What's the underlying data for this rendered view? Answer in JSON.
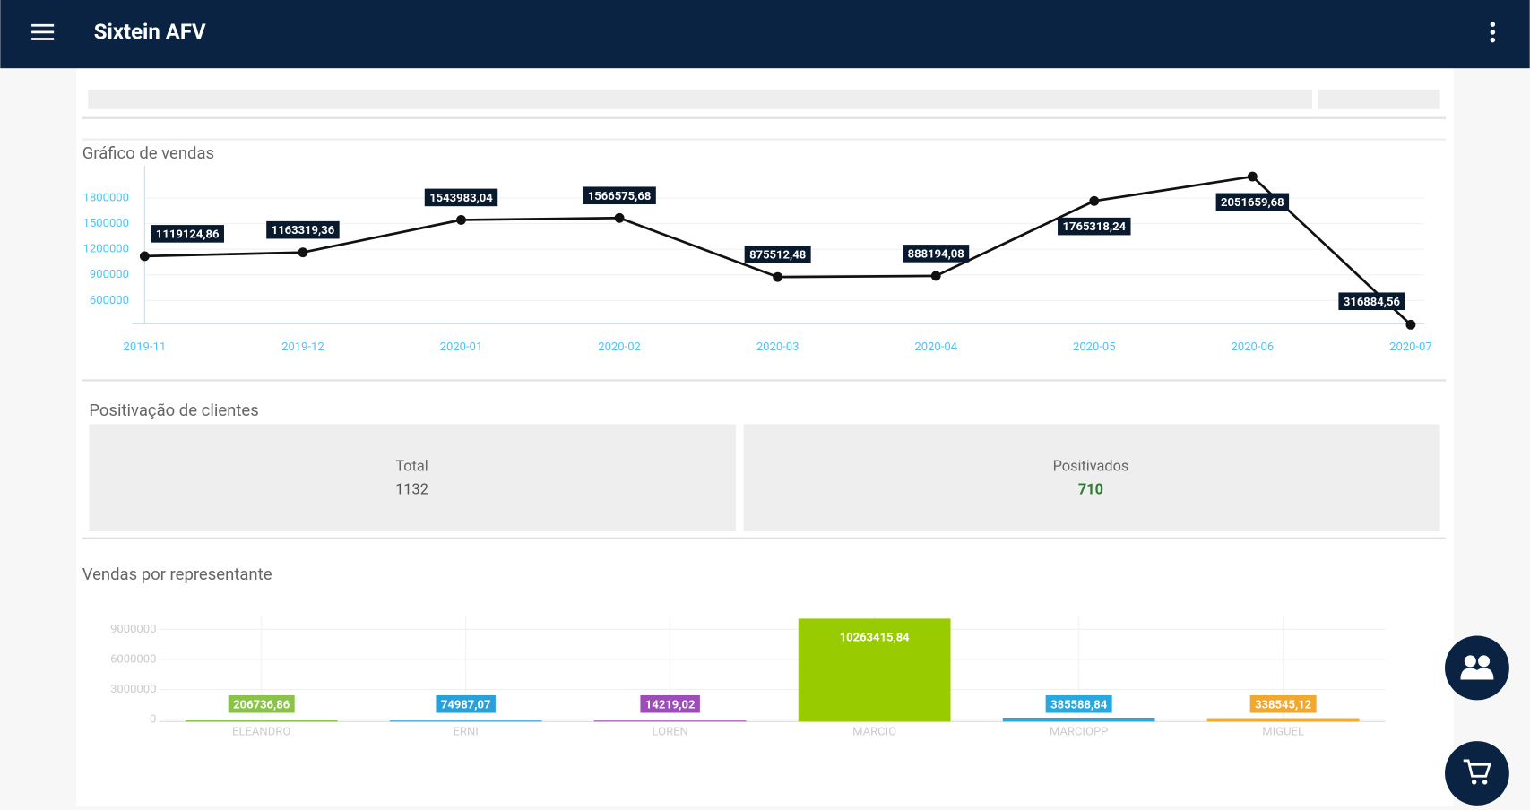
{
  "app_bar": {
    "title": "Sixtein AFV"
  },
  "clients": {
    "title": "Positivação de clientes",
    "total": {
      "label": "Total",
      "value": 1132
    },
    "positive": {
      "label": "Positivados",
      "value": 710
    }
  },
  "chart_data": [
    {
      "type": "line",
      "title": "Gráfico de vendas",
      "categories": [
        "2019-11",
        "2019-12",
        "2020-01",
        "2020-02",
        "2020-03",
        "2020-04",
        "2020-05",
        "2020-06",
        "2020-07"
      ],
      "values": [
        1119124.86,
        1163319.36,
        1543983.04,
        1566575.68,
        875512.48,
        888194.08,
        1765318.24,
        2051659.68,
        316884.56
      ],
      "value_labels": [
        "1119124,86",
        "1163319,36",
        "1543983,04",
        "1566575,68",
        "875512,48",
        "888194,08",
        "1765318,24",
        "2051659,68",
        "316884,56"
      ],
      "color": "#111111",
      "ylim": [
        328000,
        2178000
      ],
      "yticks": [
        600000,
        900000,
        1200000,
        1500000,
        1800000
      ],
      "grid": true
    },
    {
      "type": "bar",
      "title": "Vendas por representante",
      "categories": [
        "ELEANDRO",
        "ERNI",
        "LOREN",
        "MARCIO",
        "MARCIOPP",
        "MIGUEL"
      ],
      "values": [
        206736.86,
        74987.07,
        14219.02,
        10263415.84,
        385588.84,
        338545.12
      ],
      "value_labels": [
        "206736,86",
        "74987,07",
        "14219,02",
        "10263415,84",
        "385588,84",
        "338545,12"
      ],
      "colors": [
        "#8bc34a",
        "#29a0d8",
        "#9c4db8",
        "#99cc00",
        "#29a8e0",
        "#f0a830"
      ],
      "ylim": [
        0,
        10300000
      ],
      "yticks": [
        0,
        3000000,
        6000000,
        9000000
      ],
      "grid": true
    }
  ]
}
